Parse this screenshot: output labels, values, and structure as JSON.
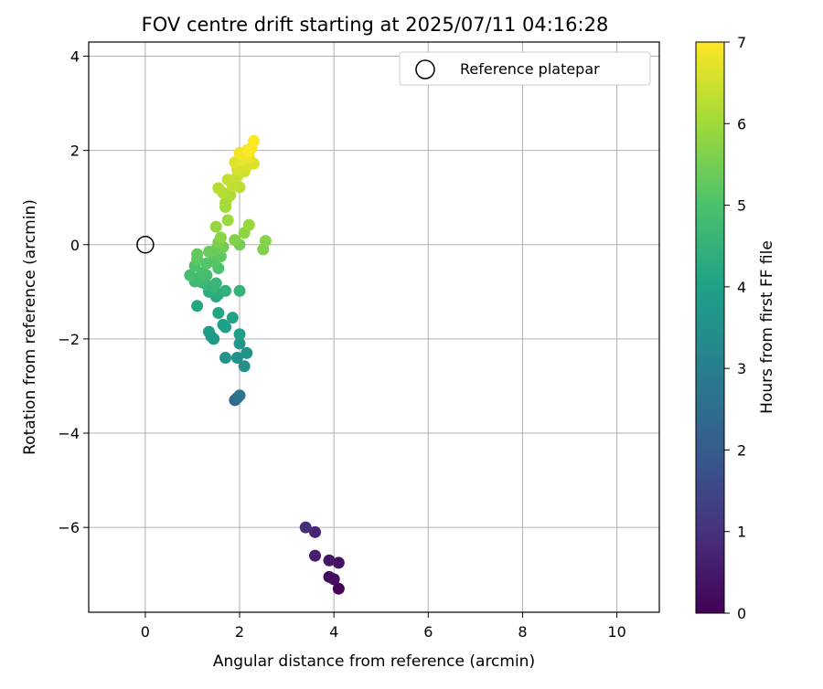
{
  "chart_data": {
    "type": "scatter",
    "title": "FOV centre drift starting at 2025/07/11 04:16:28",
    "xlabel": "Angular distance from reference (arcmin)",
    "ylabel": "Rotation from reference (arcmin)",
    "xlim": [
      -1.2,
      10.9
    ],
    "ylim": [
      -7.8,
      4.3
    ],
    "xticks": [
      "0",
      "2",
      "4",
      "6",
      "8",
      "10"
    ],
    "yticks": [
      "−6",
      "−4",
      "−2",
      "0",
      "2",
      "4"
    ],
    "grid": true,
    "legend": {
      "position": "top-right",
      "label": "Reference platepar"
    },
    "colorbar": {
      "label": "Hours from first FF file",
      "range": [
        0,
        7
      ],
      "ticks": [
        "0",
        "1",
        "2",
        "3",
        "4",
        "5",
        "6",
        "7"
      ],
      "colormap": "viridis"
    },
    "reference_point": {
      "x": 0,
      "y": 0
    },
    "series": [
      {
        "points": [
          {
            "x": 4.1,
            "y": -7.3,
            "t": 0.05
          },
          {
            "x": 3.9,
            "y": -7.05,
            "t": 0.15
          },
          {
            "x": 4.0,
            "y": -7.1,
            "t": 0.25
          },
          {
            "x": 4.1,
            "y": -6.75,
            "t": 0.35
          },
          {
            "x": 3.9,
            "y": -6.7,
            "t": 0.45
          },
          {
            "x": 3.6,
            "y": -6.6,
            "t": 0.6
          },
          {
            "x": 3.6,
            "y": -6.1,
            "t": 0.75
          },
          {
            "x": 3.4,
            "y": -6.0,
            "t": 0.9
          },
          {
            "x": 1.9,
            "y": -3.3,
            "t": 2.3
          },
          {
            "x": 1.95,
            "y": -3.25,
            "t": 2.5
          },
          {
            "x": 2.0,
            "y": -3.2,
            "t": 2.7
          },
          {
            "x": 2.1,
            "y": -2.58,
            "t": 3.5
          },
          {
            "x": 1.95,
            "y": -2.4,
            "t": 3.55
          },
          {
            "x": 1.7,
            "y": -2.4,
            "t": 3.6
          },
          {
            "x": 2.15,
            "y": -2.3,
            "t": 3.65
          },
          {
            "x": 2.0,
            "y": -2.1,
            "t": 3.7
          },
          {
            "x": 1.45,
            "y": -2.0,
            "t": 3.75
          },
          {
            "x": 1.4,
            "y": -1.95,
            "t": 3.8
          },
          {
            "x": 1.35,
            "y": -1.85,
            "t": 3.85
          },
          {
            "x": 2.0,
            "y": -1.9,
            "t": 3.9
          },
          {
            "x": 1.7,
            "y": -1.75,
            "t": 3.95
          },
          {
            "x": 1.65,
            "y": -1.7,
            "t": 4.0
          },
          {
            "x": 1.85,
            "y": -1.55,
            "t": 4.05
          },
          {
            "x": 1.55,
            "y": -1.45,
            "t": 4.1
          },
          {
            "x": 1.1,
            "y": -1.3,
            "t": 4.15
          },
          {
            "x": 1.5,
            "y": -1.1,
            "t": 4.2
          },
          {
            "x": 1.55,
            "y": -1.05,
            "t": 4.3
          },
          {
            "x": 1.35,
            "y": -1.0,
            "t": 4.35
          },
          {
            "x": 1.7,
            "y": -0.98,
            "t": 4.45
          },
          {
            "x": 2.0,
            "y": -0.98,
            "t": 4.5
          },
          {
            "x": 1.45,
            "y": -0.9,
            "t": 4.55
          },
          {
            "x": 1.3,
            "y": -0.85,
            "t": 4.6
          },
          {
            "x": 1.5,
            "y": -0.82,
            "t": 4.65
          },
          {
            "x": 1.2,
            "y": -0.8,
            "t": 4.7
          },
          {
            "x": 1.05,
            "y": -0.78,
            "t": 4.75
          },
          {
            "x": 1.15,
            "y": -0.7,
            "t": 4.8
          },
          {
            "x": 1.3,
            "y": -0.65,
            "t": 4.85
          },
          {
            "x": 0.95,
            "y": -0.65,
            "t": 4.9
          },
          {
            "x": 1.2,
            "y": -0.6,
            "t": 4.95
          },
          {
            "x": 1.55,
            "y": -0.5,
            "t": 5.0
          },
          {
            "x": 1.05,
            "y": -0.45,
            "t": 5.05
          },
          {
            "x": 1.3,
            "y": -0.4,
            "t": 5.1
          },
          {
            "x": 1.45,
            "y": -0.35,
            "t": 5.15
          },
          {
            "x": 1.1,
            "y": -0.3,
            "t": 5.2
          },
          {
            "x": 1.6,
            "y": -0.25,
            "t": 5.25
          },
          {
            "x": 1.1,
            "y": -0.2,
            "t": 5.3
          },
          {
            "x": 1.35,
            "y": -0.15,
            "t": 5.35
          },
          {
            "x": 1.5,
            "y": -0.1,
            "t": 5.4
          },
          {
            "x": 1.65,
            "y": -0.05,
            "t": 5.45
          },
          {
            "x": 2.0,
            "y": 0.0,
            "t": 5.5
          },
          {
            "x": 1.55,
            "y": 0.05,
            "t": 5.55
          },
          {
            "x": 2.5,
            "y": -0.1,
            "t": 5.6
          },
          {
            "x": 1.9,
            "y": 0.1,
            "t": 5.65
          },
          {
            "x": 2.55,
            "y": 0.08,
            "t": 5.7
          },
          {
            "x": 1.6,
            "y": 0.15,
            "t": 5.75
          },
          {
            "x": 2.1,
            "y": 0.25,
            "t": 5.8
          },
          {
            "x": 1.5,
            "y": 0.38,
            "t": 5.85
          },
          {
            "x": 2.2,
            "y": 0.42,
            "t": 5.9
          },
          {
            "x": 1.75,
            "y": 0.52,
            "t": 5.95
          },
          {
            "x": 1.7,
            "y": 0.8,
            "t": 6.0
          },
          {
            "x": 1.7,
            "y": 0.88,
            "t": 6.05
          },
          {
            "x": 1.75,
            "y": 1.0,
            "t": 6.1
          },
          {
            "x": 1.8,
            "y": 1.05,
            "t": 6.15
          },
          {
            "x": 1.65,
            "y": 1.1,
            "t": 6.2
          },
          {
            "x": 1.55,
            "y": 1.2,
            "t": 6.25
          },
          {
            "x": 2.0,
            "y": 1.22,
            "t": 6.3
          },
          {
            "x": 1.85,
            "y": 1.25,
            "t": 6.35
          },
          {
            "x": 1.75,
            "y": 1.38,
            "t": 6.4
          },
          {
            "x": 1.95,
            "y": 1.45,
            "t": 6.45
          },
          {
            "x": 2.1,
            "y": 1.55,
            "t": 6.5
          },
          {
            "x": 1.95,
            "y": 1.6,
            "t": 6.55
          },
          {
            "x": 2.15,
            "y": 1.65,
            "t": 6.6
          },
          {
            "x": 2.3,
            "y": 1.72,
            "t": 6.65
          },
          {
            "x": 1.9,
            "y": 1.75,
            "t": 6.7
          },
          {
            "x": 2.05,
            "y": 1.8,
            "t": 6.75
          },
          {
            "x": 2.2,
            "y": 1.85,
            "t": 6.8
          },
          {
            "x": 2.1,
            "y": 1.9,
            "t": 6.85
          },
          {
            "x": 2.0,
            "y": 1.95,
            "t": 6.88
          },
          {
            "x": 2.15,
            "y": 2.0,
            "t": 6.92
          },
          {
            "x": 2.25,
            "y": 2.05,
            "t": 6.95
          },
          {
            "x": 2.2,
            "y": 1.98,
            "t": 6.97
          },
          {
            "x": 2.3,
            "y": 2.2,
            "t": 7.0
          }
        ]
      }
    ]
  }
}
